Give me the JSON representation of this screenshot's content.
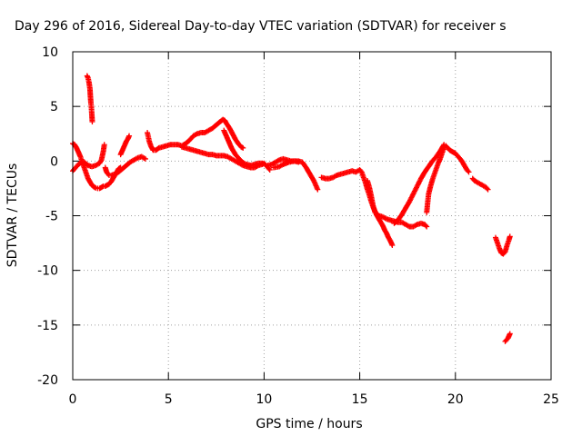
{
  "chart_data": {
    "type": "scatter",
    "title": "Day 296 of 2016, Sidereal Day-to-day VTEC variation (SDTVAR) for receiver s",
    "xlabel": "GPS time / hours",
    "ylabel": "SDTVAR / TECUs",
    "xlim": [
      0,
      25
    ],
    "ylim": [
      -20,
      10
    ],
    "xticks": [
      "0",
      "5",
      "10",
      "15",
      "20",
      "25"
    ],
    "yticks": [
      "10",
      "5",
      "0",
      "-5",
      "-10",
      "-15",
      "-20"
    ],
    "xtick_values": [
      0,
      5,
      10,
      15,
      20,
      25
    ],
    "ytick_values": [
      10,
      5,
      0,
      -5,
      -10,
      -15,
      -20
    ],
    "grid": true,
    "marker": "plus",
    "color": "#ff0000",
    "series": [
      {
        "points": [
          [
            0.75,
            7.8
          ],
          [
            0.8,
            7.6
          ],
          [
            0.85,
            7.2
          ],
          [
            0.9,
            6.6
          ],
          [
            0.92,
            6.0
          ],
          [
            0.95,
            5.3
          ],
          [
            0.97,
            5.0
          ],
          [
            1.0,
            4.2
          ],
          [
            1.02,
            3.6
          ]
        ]
      },
      {
        "points": [
          [
            0.0,
            1.6
          ],
          [
            0.1,
            1.5
          ],
          [
            0.2,
            1.2
          ],
          [
            0.3,
            0.8
          ],
          [
            0.4,
            0.4
          ],
          [
            0.5,
            -0.1
          ],
          [
            0.6,
            -0.6
          ],
          [
            0.7,
            -1.1
          ],
          [
            0.8,
            -1.6
          ],
          [
            0.9,
            -1.9
          ],
          [
            1.0,
            -2.2
          ],
          [
            1.1,
            -2.35
          ],
          [
            1.2,
            -2.45
          ],
          [
            1.3,
            -2.5
          ],
          [
            1.4,
            -2.5
          ],
          [
            1.5,
            -2.4
          ],
          [
            1.6,
            -2.3
          ],
          [
            1.7,
            -2.3
          ],
          [
            1.8,
            -2.2
          ],
          [
            1.9,
            -2.1
          ],
          [
            2.0,
            -1.9
          ],
          [
            2.1,
            -1.6
          ],
          [
            2.2,
            -1.3
          ],
          [
            2.3,
            -1.0
          ],
          [
            2.4,
            -0.7
          ],
          [
            2.5,
            -0.6
          ]
        ]
      },
      {
        "points": [
          [
            0.0,
            -0.9
          ],
          [
            0.1,
            -0.7
          ],
          [
            0.2,
            -0.5
          ],
          [
            0.3,
            -0.3
          ],
          [
            0.45,
            -0.1
          ],
          [
            0.6,
            -0.1
          ],
          [
            0.8,
            -0.4
          ],
          [
            1.0,
            -0.5
          ],
          [
            1.2,
            -0.4
          ],
          [
            1.4,
            -0.2
          ],
          [
            1.5,
            0.1
          ],
          [
            1.6,
            0.9
          ],
          [
            1.65,
            1.5
          ]
        ]
      },
      {
        "points": [
          [
            1.7,
            -0.6
          ],
          [
            1.75,
            -0.9
          ],
          [
            1.8,
            -1.1
          ],
          [
            1.9,
            -1.3
          ],
          [
            2.0,
            -1.3
          ],
          [
            2.2,
            -1.2
          ],
          [
            2.4,
            -1.0
          ],
          [
            2.6,
            -0.7
          ],
          [
            2.8,
            -0.4
          ],
          [
            3.0,
            -0.1
          ],
          [
            3.2,
            0.1
          ],
          [
            3.4,
            0.3
          ],
          [
            3.6,
            0.4
          ],
          [
            3.8,
            0.2
          ]
        ]
      },
      {
        "points": [
          [
            2.5,
            0.6
          ],
          [
            2.6,
            1.0
          ],
          [
            2.7,
            1.4
          ],
          [
            2.8,
            1.8
          ],
          [
            2.9,
            2.1
          ],
          [
            2.95,
            2.3
          ]
        ]
      },
      {
        "points": [
          [
            3.9,
            2.6
          ],
          [
            3.95,
            2.2
          ],
          [
            4.0,
            1.8
          ],
          [
            4.1,
            1.3
          ],
          [
            4.2,
            1.0
          ],
          [
            4.35,
            1.0
          ],
          [
            4.5,
            1.2
          ],
          [
            4.7,
            1.3
          ],
          [
            4.9,
            1.4
          ],
          [
            5.1,
            1.5
          ],
          [
            5.3,
            1.5
          ],
          [
            5.5,
            1.5
          ],
          [
            5.7,
            1.4
          ],
          [
            5.9,
            1.6
          ],
          [
            6.1,
            1.9
          ],
          [
            6.3,
            2.3
          ],
          [
            6.5,
            2.5
          ],
          [
            6.7,
            2.6
          ],
          [
            6.9,
            2.6
          ],
          [
            7.1,
            2.8
          ],
          [
            7.3,
            3.0
          ],
          [
            7.5,
            3.3
          ],
          [
            7.7,
            3.6
          ],
          [
            7.85,
            3.8
          ],
          [
            7.95,
            3.7
          ],
          [
            8.05,
            3.4
          ],
          [
            8.2,
            3.0
          ],
          [
            8.35,
            2.5
          ],
          [
            8.5,
            2.0
          ],
          [
            8.65,
            1.6
          ],
          [
            8.8,
            1.3
          ],
          [
            8.9,
            1.2
          ]
        ]
      },
      {
        "points": [
          [
            5.7,
            1.3
          ],
          [
            5.9,
            1.2
          ],
          [
            6.1,
            1.1
          ],
          [
            6.3,
            1.0
          ],
          [
            6.5,
            0.9
          ],
          [
            6.7,
            0.8
          ],
          [
            6.9,
            0.7
          ],
          [
            7.1,
            0.6
          ],
          [
            7.3,
            0.6
          ],
          [
            7.5,
            0.5
          ],
          [
            7.7,
            0.5
          ],
          [
            7.9,
            0.5
          ],
          [
            8.1,
            0.4
          ],
          [
            8.3,
            0.2
          ],
          [
            8.5,
            0.0
          ],
          [
            8.7,
            -0.2
          ],
          [
            8.9,
            -0.4
          ],
          [
            9.1,
            -0.5
          ],
          [
            9.3,
            -0.6
          ],
          [
            9.5,
            -0.6
          ],
          [
            9.7,
            -0.4
          ],
          [
            9.9,
            -0.3
          ],
          [
            10.0,
            -0.2
          ],
          [
            10.1,
            -0.4
          ],
          [
            10.2,
            -0.6
          ],
          [
            10.3,
            -0.8
          ]
        ]
      },
      {
        "points": [
          [
            7.9,
            2.8
          ],
          [
            8.0,
            2.4
          ],
          [
            8.1,
            2.0
          ],
          [
            8.2,
            1.6
          ],
          [
            8.3,
            1.2
          ],
          [
            8.4,
            0.9
          ],
          [
            8.5,
            0.6
          ],
          [
            8.65,
            0.3
          ],
          [
            8.8,
            0.0
          ],
          [
            8.95,
            -0.2
          ],
          [
            9.1,
            -0.3
          ],
          [
            9.3,
            -0.4
          ],
          [
            9.5,
            -0.3
          ],
          [
            9.7,
            -0.2
          ],
          [
            9.9,
            -0.2
          ]
        ]
      },
      {
        "points": [
          [
            10.2,
            -0.4
          ],
          [
            10.4,
            -0.3
          ],
          [
            10.6,
            -0.1
          ],
          [
            10.8,
            0.1
          ],
          [
            11.0,
            0.2
          ],
          [
            11.2,
            0.1
          ],
          [
            11.4,
            0.0
          ],
          [
            11.6,
            0.0
          ],
          [
            11.8,
            0.0
          ],
          [
            12.0,
            -0.1
          ],
          [
            12.2,
            -0.6
          ],
          [
            12.4,
            -1.2
          ],
          [
            12.6,
            -1.8
          ],
          [
            12.8,
            -2.6
          ]
        ]
      },
      {
        "points": [
          [
            10.5,
            -0.6
          ],
          [
            10.8,
            -0.5
          ],
          [
            11.0,
            -0.3
          ],
          [
            11.3,
            -0.1
          ],
          [
            11.6,
            0.0
          ],
          [
            11.8,
            -0.1
          ]
        ]
      },
      {
        "points": [
          [
            13.0,
            -1.5
          ],
          [
            13.2,
            -1.6
          ],
          [
            13.4,
            -1.6
          ],
          [
            13.6,
            -1.5
          ],
          [
            13.8,
            -1.3
          ],
          [
            14.0,
            -1.2
          ],
          [
            14.2,
            -1.1
          ],
          [
            14.4,
            -1.0
          ],
          [
            14.6,
            -0.9
          ],
          [
            14.8,
            -1.0
          ],
          [
            15.0,
            -0.8
          ],
          [
            15.1,
            -1.0
          ],
          [
            15.2,
            -1.5
          ],
          [
            15.3,
            -2.0
          ],
          [
            15.4,
            -2.6
          ],
          [
            15.5,
            -3.1
          ],
          [
            15.6,
            -3.7
          ],
          [
            15.7,
            -4.2
          ],
          [
            15.8,
            -4.6
          ],
          [
            15.9,
            -5.0
          ],
          [
            16.0,
            -5.3
          ],
          [
            16.1,
            -5.6
          ],
          [
            16.2,
            -5.9
          ],
          [
            16.3,
            -6.3
          ],
          [
            16.4,
            -6.6
          ],
          [
            16.5,
            -7.0
          ],
          [
            16.6,
            -7.3
          ],
          [
            16.7,
            -7.7
          ]
        ]
      },
      {
        "points": [
          [
            15.4,
            -1.8
          ],
          [
            15.5,
            -2.4
          ],
          [
            15.6,
            -3.2
          ],
          [
            15.7,
            -4.1
          ],
          [
            15.8,
            -4.7
          ],
          [
            16.0,
            -5.0
          ],
          [
            16.2,
            -5.1
          ],
          [
            16.4,
            -5.3
          ],
          [
            16.6,
            -5.4
          ],
          [
            16.8,
            -5.5
          ],
          [
            17.0,
            -5.6
          ],
          [
            17.2,
            -5.6
          ],
          [
            17.4,
            -5.8
          ],
          [
            17.6,
            -6.0
          ],
          [
            17.8,
            -6.0
          ],
          [
            18.0,
            -5.8
          ],
          [
            18.2,
            -5.7
          ],
          [
            18.4,
            -5.8
          ],
          [
            18.5,
            -6.0
          ]
        ]
      },
      {
        "points": [
          [
            16.8,
            -5.7
          ],
          [
            17.0,
            -5.4
          ],
          [
            17.2,
            -4.9
          ],
          [
            17.4,
            -4.3
          ],
          [
            17.6,
            -3.7
          ],
          [
            17.8,
            -3.0
          ],
          [
            18.0,
            -2.3
          ],
          [
            18.2,
            -1.6
          ],
          [
            18.4,
            -1.0
          ],
          [
            18.6,
            -0.5
          ],
          [
            18.8,
            0.0
          ],
          [
            19.0,
            0.4
          ],
          [
            19.2,
            0.9
          ],
          [
            19.4,
            1.5
          ]
        ]
      },
      {
        "points": [
          [
            18.5,
            -4.7
          ],
          [
            18.55,
            -3.8
          ],
          [
            18.6,
            -3.0
          ],
          [
            18.7,
            -2.3
          ],
          [
            18.8,
            -1.7
          ],
          [
            18.9,
            -1.2
          ],
          [
            19.0,
            -0.7
          ],
          [
            19.1,
            -0.2
          ],
          [
            19.2,
            0.2
          ],
          [
            19.3,
            0.7
          ],
          [
            19.4,
            1.2
          ],
          [
            19.5,
            1.4
          ],
          [
            19.6,
            1.2
          ],
          [
            19.7,
            1.0
          ],
          [
            19.8,
            0.9
          ],
          [
            19.9,
            0.8
          ],
          [
            20.0,
            0.7
          ],
          [
            20.1,
            0.5
          ],
          [
            20.2,
            0.3
          ],
          [
            20.3,
            0.1
          ],
          [
            20.4,
            -0.2
          ],
          [
            20.5,
            -0.5
          ],
          [
            20.6,
            -0.8
          ],
          [
            20.7,
            -1.0
          ]
        ]
      },
      {
        "points": [
          [
            20.9,
            -1.6
          ],
          [
            21.0,
            -1.8
          ],
          [
            21.2,
            -2.0
          ],
          [
            21.4,
            -2.2
          ],
          [
            21.6,
            -2.4
          ],
          [
            21.7,
            -2.6
          ]
        ]
      },
      {
        "points": [
          [
            22.1,
            -7.0
          ],
          [
            22.2,
            -7.5
          ],
          [
            22.3,
            -8.0
          ],
          [
            22.4,
            -8.4
          ],
          [
            22.5,
            -8.5
          ],
          [
            22.6,
            -8.3
          ],
          [
            22.7,
            -7.7
          ],
          [
            22.8,
            -7.2
          ],
          [
            22.85,
            -6.9
          ]
        ]
      },
      {
        "points": [
          [
            22.6,
            -16.5
          ],
          [
            22.65,
            -16.4
          ],
          [
            22.7,
            -16.3
          ],
          [
            22.75,
            -16.2
          ],
          [
            22.8,
            -16.0
          ],
          [
            22.85,
            -15.8
          ]
        ]
      }
    ]
  }
}
